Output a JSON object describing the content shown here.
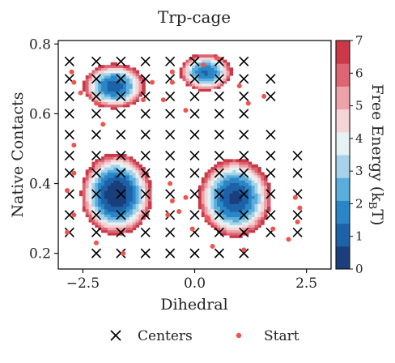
{
  "chart_data": {
    "type": "heatmap",
    "title": "Trp-cage",
    "xlabel": "Dihedral",
    "ylabel": "Native Contacts",
    "colorbar_label": "Free Energy (k",
    "colorbar_label_sub": "B",
    "colorbar_label_end": "T)",
    "xlim": [
      -3.05,
      3.05
    ],
    "ylim": [
      0.155,
      0.81
    ],
    "xticks": [
      -2.5,
      0.0,
      2.5
    ],
    "xtick_labels": [
      "−2.5",
      "0.0",
      "2.5"
    ],
    "yticks": [
      0.2,
      0.4,
      0.6,
      0.8
    ],
    "ytick_labels": [
      "0.2",
      "0.4",
      "0.6",
      "0.8"
    ],
    "colorbar_ticks": [
      0,
      1,
      2,
      3,
      4,
      5,
      6,
      7
    ],
    "colorbar_tick_labels": [
      "0",
      "1",
      "2",
      "3",
      "4",
      "5",
      "6",
      "7"
    ],
    "colorbar_range": [
      0,
      7
    ],
    "colorscale": [
      "#1b3f7c",
      "#1d62a8",
      "#2a86c6",
      "#5aaedc",
      "#a6d2ea",
      "#e6f1f4",
      "#f5d4d6",
      "#eca2a8",
      "#dd6572",
      "#cc3848"
    ],
    "minima": [
      {
        "x": -1.75,
        "y": 0.37,
        "depth": 0.0,
        "sx": 0.75,
        "sy": 0.11
      },
      {
        "x": 0.9,
        "y": 0.36,
        "depth": 0.5,
        "sx": 0.8,
        "sy": 0.11
      },
      {
        "x": -1.8,
        "y": 0.68,
        "depth": 1.0,
        "sx": 0.7,
        "sy": 0.065
      },
      {
        "x": 0.25,
        "y": 0.72,
        "depth": 1.3,
        "sx": 0.6,
        "sy": 0.055
      }
    ],
    "legend": [
      {
        "label": "Centers",
        "marker": "x",
        "color": "#000000"
      },
      {
        "label": "Start",
        "marker": "dot",
        "color": "#f0544f"
      }
    ],
    "centers": [
      [
        -2.8,
        0.75
      ],
      [
        -2.2,
        0.75
      ],
      [
        -1.65,
        0.75
      ],
      [
        -1.1,
        0.75
      ],
      [
        -0.55,
        0.75
      ],
      [
        0.0,
        0.75
      ],
      [
        0.55,
        0.75
      ],
      [
        1.1,
        0.75
      ],
      [
        -2.8,
        0.7
      ],
      [
        -2.2,
        0.7
      ],
      [
        -1.65,
        0.7
      ],
      [
        -1.1,
        0.7
      ],
      [
        -0.55,
        0.7
      ],
      [
        0.0,
        0.7
      ],
      [
        0.55,
        0.7
      ],
      [
        1.1,
        0.7
      ],
      [
        1.7,
        0.7
      ],
      [
        -2.8,
        0.65
      ],
      [
        -2.2,
        0.65
      ],
      [
        -1.65,
        0.65
      ],
      [
        -1.1,
        0.65
      ],
      [
        -0.55,
        0.65
      ],
      [
        0.0,
        0.65
      ],
      [
        0.55,
        0.65
      ],
      [
        1.1,
        0.65
      ],
      [
        1.7,
        0.65
      ],
      [
        -2.8,
        0.6
      ],
      [
        -2.2,
        0.6
      ],
      [
        -1.65,
        0.6
      ],
      [
        -1.1,
        0.6
      ],
      [
        -0.55,
        0.6
      ],
      [
        0.0,
        0.6
      ],
      [
        0.55,
        0.6
      ],
      [
        1.1,
        0.6
      ],
      [
        -2.8,
        0.54
      ],
      [
        -2.2,
        0.54
      ],
      [
        -1.65,
        0.54
      ],
      [
        -1.1,
        0.54
      ],
      [
        -0.55,
        0.54
      ],
      [
        0.0,
        0.54
      ],
      [
        0.55,
        0.54
      ],
      [
        1.1,
        0.54
      ],
      [
        1.7,
        0.54
      ],
      [
        -2.8,
        0.48
      ],
      [
        -2.2,
        0.48
      ],
      [
        -1.65,
        0.48
      ],
      [
        -1.1,
        0.48
      ],
      [
        -0.55,
        0.48
      ],
      [
        0.0,
        0.48
      ],
      [
        0.55,
        0.48
      ],
      [
        1.1,
        0.48
      ],
      [
        1.7,
        0.48
      ],
      [
        2.3,
        0.48
      ],
      [
        -2.8,
        0.43
      ],
      [
        -2.2,
        0.43
      ],
      [
        -1.65,
        0.43
      ],
      [
        -1.1,
        0.43
      ],
      [
        -0.55,
        0.43
      ],
      [
        0.0,
        0.43
      ],
      [
        0.55,
        0.43
      ],
      [
        1.1,
        0.43
      ],
      [
        1.7,
        0.43
      ],
      [
        2.3,
        0.43
      ],
      [
        -2.8,
        0.37
      ],
      [
        -2.2,
        0.37
      ],
      [
        -1.65,
        0.37
      ],
      [
        -1.1,
        0.37
      ],
      [
        -0.55,
        0.37
      ],
      [
        0.0,
        0.37
      ],
      [
        0.55,
        0.37
      ],
      [
        1.1,
        0.37
      ],
      [
        1.7,
        0.37
      ],
      [
        2.3,
        0.37
      ],
      [
        -2.8,
        0.31
      ],
      [
        -2.2,
        0.31
      ],
      [
        -1.65,
        0.31
      ],
      [
        -1.1,
        0.31
      ],
      [
        -0.55,
        0.31
      ],
      [
        0.0,
        0.31
      ],
      [
        0.55,
        0.31
      ],
      [
        1.1,
        0.31
      ],
      [
        1.7,
        0.31
      ],
      [
        2.3,
        0.31
      ],
      [
        -2.8,
        0.26
      ],
      [
        -2.2,
        0.26
      ],
      [
        -1.65,
        0.26
      ],
      [
        -1.1,
        0.26
      ],
      [
        -0.55,
        0.26
      ],
      [
        0.0,
        0.26
      ],
      [
        0.55,
        0.26
      ],
      [
        1.1,
        0.26
      ],
      [
        1.7,
        0.26
      ],
      [
        2.3,
        0.26
      ],
      [
        -2.2,
        0.2
      ],
      [
        -1.65,
        0.2
      ],
      [
        -1.1,
        0.2
      ],
      [
        -0.55,
        0.2
      ],
      [
        0.0,
        0.2
      ],
      [
        0.55,
        0.2
      ],
      [
        1.1,
        0.2
      ]
    ],
    "starts": [
      [
        -2.75,
        0.72
      ],
      [
        -2.7,
        0.69
      ],
      [
        -2.55,
        0.66
      ],
      [
        -2.2,
        0.63
      ],
      [
        -2.05,
        0.57
      ],
      [
        -1.15,
        0.64
      ],
      [
        -0.7,
        0.64
      ],
      [
        -0.95,
        0.69
      ],
      [
        -0.5,
        0.72
      ],
      [
        -0.5,
        0.69
      ],
      [
        -0.2,
        0.61
      ],
      [
        0.5,
        0.76
      ],
      [
        0.2,
        0.74
      ],
      [
        1.2,
        0.63
      ],
      [
        1.0,
        0.68
      ],
      [
        1.55,
        0.65
      ],
      [
        -2.7,
        0.51
      ],
      [
        -2.7,
        0.43
      ],
      [
        -2.85,
        0.38
      ],
      [
        -2.7,
        0.31
      ],
      [
        -2.85,
        0.26
      ],
      [
        -1.6,
        0.2
      ],
      [
        -2.2,
        0.23
      ],
      [
        -0.55,
        0.4
      ],
      [
        -0.5,
        0.35
      ],
      [
        -0.6,
        0.31
      ],
      [
        -0.35,
        0.32
      ],
      [
        -0.2,
        0.36
      ],
      [
        0.4,
        0.22
      ],
      [
        1.1,
        0.21
      ],
      [
        1.75,
        0.27
      ],
      [
        2.1,
        0.24
      ],
      [
        2.3,
        0.29
      ],
      [
        2.25,
        0.36
      ],
      [
        2.35,
        0.33
      ],
      [
        0.3,
        0.3
      ],
      [
        -0.05,
        0.27
      ]
    ]
  }
}
